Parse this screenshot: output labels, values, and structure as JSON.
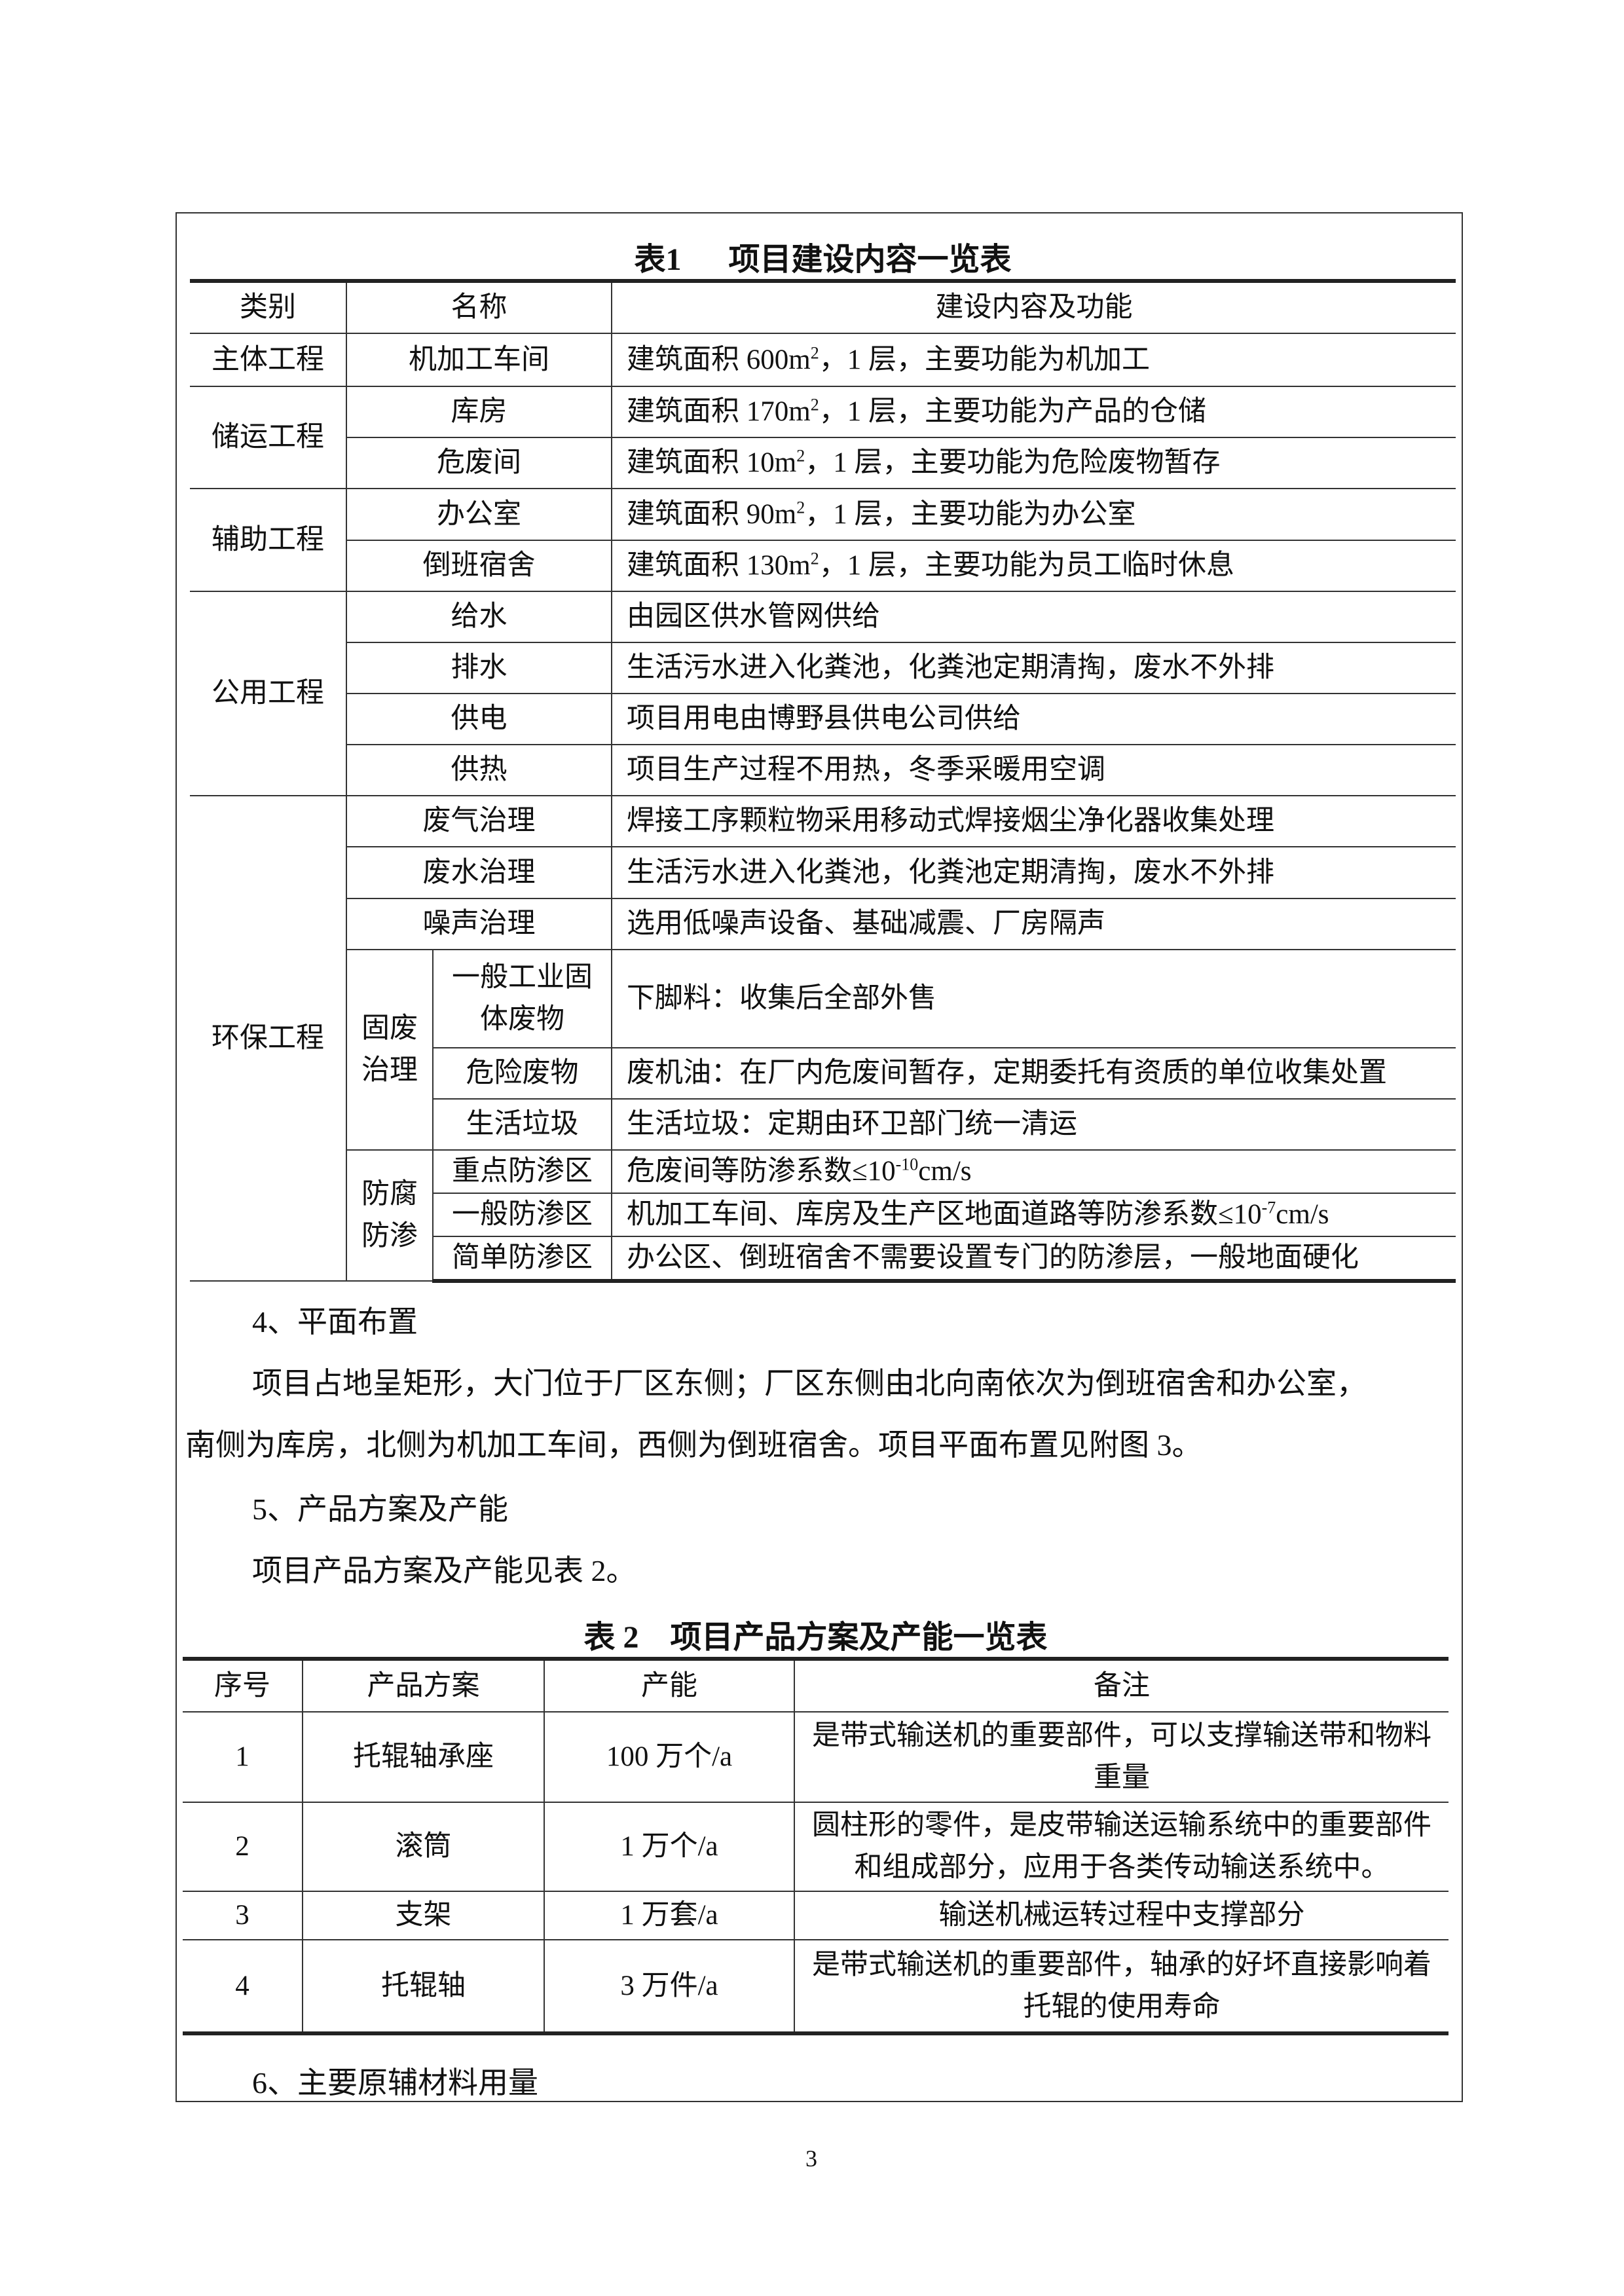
{
  "table1": {
    "title": "表1      项目建设内容一览表",
    "headers": [
      "类别",
      "名称",
      "建设内容及功能"
    ],
    "rows": {
      "r1": {
        "cat": "主体工程",
        "name": "机加工车间",
        "pre": "建筑面积 600m",
        "post": "，1 层，主要功能为机加工"
      },
      "cat2": "储运工程",
      "r2": {
        "name": "库房",
        "pre": "建筑面积 170m",
        "post": "，1 层，主要功能为产品的仓储"
      },
      "r3": {
        "name": "危废间",
        "pre": "建筑面积 10m",
        "post": "，1 层，主要功能为危险废物暂存"
      },
      "cat3": "辅助工程",
      "r4": {
        "name": "办公室",
        "pre": "建筑面积 90m",
        "post": "，1 层，主要功能为办公室"
      },
      "r5": {
        "name": "倒班宿舍",
        "pre": "建筑面积 130m",
        "post": "，1 层，主要功能为员工临时休息"
      },
      "sup": "2",
      "cat4": "公用工程",
      "r6": {
        "name": "给水",
        "content": "由园区供水管网供给"
      },
      "r7": {
        "name": "排水",
        "content": "生活污水进入化粪池，化粪池定期清掏，废水不外排"
      },
      "r8": {
        "name": "供电",
        "content": "项目用电由博野县供电公司供给"
      },
      "r9": {
        "name": "供热",
        "content": "项目生产过程不用热，冬季采暖用空调"
      },
      "cat5": "环保工程",
      "r10": {
        "name": "废气治理",
        "content": "焊接工序颗粒物采用移动式焊接烟尘净化器收集处理"
      },
      "r11": {
        "name": "废水治理",
        "content": "生活污水进入化粪池，化粪池定期清掏，废水不外排"
      },
      "r12": {
        "name": "噪声治理",
        "content": "选用低噪声设备、基础减震、厂房隔声"
      },
      "sub1": "固废治理",
      "r13": {
        "name": "一般工业固体废物",
        "content": "下脚料：收集后全部外售"
      },
      "r14": {
        "name": "危险废物",
        "content": "废机油：在厂内危废间暂存，定期委托有资质的单位收集处置"
      },
      "r15": {
        "name": "生活垃圾",
        "content": "生活垃圾：定期由环卫部门统一清运"
      },
      "sub2": "防腐防渗",
      "r16": {
        "name": "重点防渗区",
        "pre": "危废间等防渗系数≤10",
        "sup": "-10",
        "post": "cm/s"
      },
      "r17": {
        "name": "一般防渗区",
        "pre": "机加工车间、库房及生产区地面道路等防渗系数≤10",
        "sup": "-7",
        "post": "cm/s"
      },
      "r18": {
        "name": "简单防渗区",
        "content": "办公区、倒班宿舍不需要设置专门的防渗层，一般地面硬化"
      }
    }
  },
  "body": {
    "h4": "4、平面布置",
    "p4_line1": "项目占地呈矩形，大门位于厂区东侧；厂区东侧由北向南依次为倒班宿舍和办公室，",
    "p4_line2": "南侧为库房，北侧为机加工车间，西侧为倒班宿舍。项目平面布置见附图 3。",
    "h5": "5、产品方案及产能",
    "p5": "项目产品方案及产能见表 2。",
    "h6": "6、主要原辅材料用量"
  },
  "table2": {
    "title": "表 2    项目产品方案及产能一览表",
    "headers": [
      "序号",
      "产品方案",
      "产能",
      "备注"
    ],
    "rows": [
      {
        "no": "1",
        "product": "托辊轴承座",
        "capacity": "100 万个/a",
        "note": "是带式输送机的重要部件，可以支撑输送带和物料重量"
      },
      {
        "no": "2",
        "product": "滚筒",
        "capacity": "1 万个/a",
        "note": "圆柱形的零件，是皮带输送运输系统中的重要部件和组成部分，应用于各类传动输送系统中。"
      },
      {
        "no": "3",
        "product": "支架",
        "capacity": "1 万套/a",
        "note": "输送机械运转过程中支撑部分"
      },
      {
        "no": "4",
        "product": "托辊轴",
        "capacity": "3 万件/a",
        "note": "是带式输送机的重要部件，轴承的好坏直接影响着托辊的使用寿命"
      }
    ]
  },
  "page_number": "3"
}
